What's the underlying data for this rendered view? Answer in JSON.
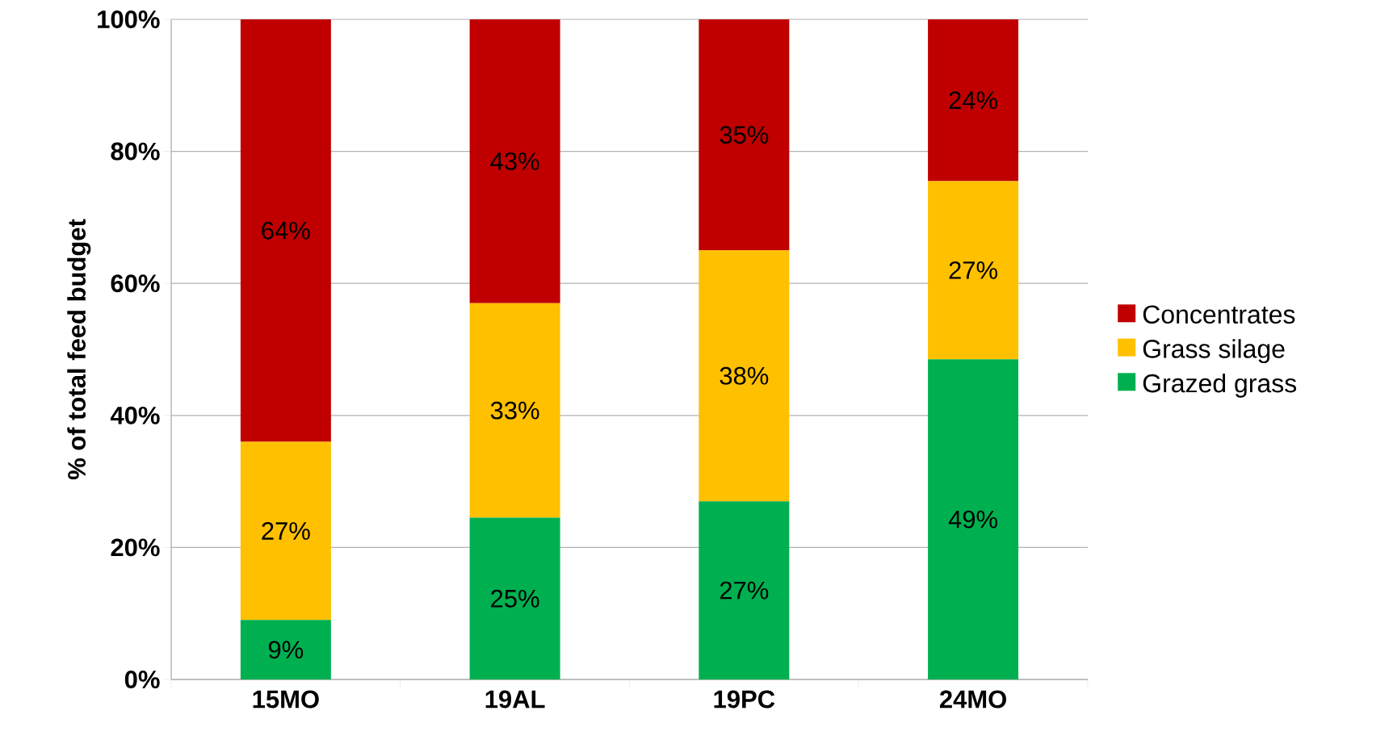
{
  "chart_data": {
    "type": "bar",
    "stacked": true,
    "ylabel": "% of total feed budget",
    "categories": [
      "15MO",
      "19AL",
      "19PC",
      "24MO"
    ],
    "series": [
      {
        "name": "Grazed grass",
        "color": "#00b050",
        "values": [
          9,
          24.5,
          27,
          48.5
        ],
        "value_labels": [
          "9%",
          "25%",
          "27%",
          "49%"
        ]
      },
      {
        "name": "Grass silage",
        "color": "#ffc000",
        "values": [
          27,
          32.5,
          38,
          27
        ],
        "value_labels": [
          "27%",
          "33%",
          "38%",
          "27%"
        ]
      },
      {
        "name": "Concentrates",
        "color": "#c00000",
        "values": [
          64,
          43,
          35,
          24.5
        ],
        "value_labels": [
          "64%",
          "43%",
          "35%",
          "24%"
        ]
      }
    ],
    "ylim": [
      0,
      100
    ],
    "yticks": [
      {
        "value": 0,
        "label": "0%"
      },
      {
        "value": 20,
        "label": "20%"
      },
      {
        "value": 40,
        "label": "40%"
      },
      {
        "value": 60,
        "label": "60%"
      },
      {
        "value": 80,
        "label": "80%"
      },
      {
        "value": 100,
        "label": "100%"
      }
    ],
    "grid": "y",
    "legend": "right"
  }
}
